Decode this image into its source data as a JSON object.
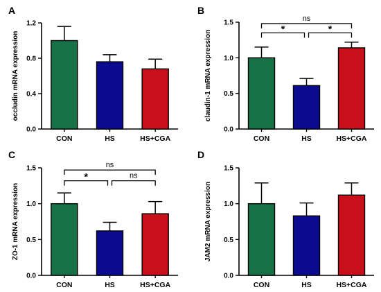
{
  "colors": {
    "CON": "#167147",
    "HS": "#0b0b8f",
    "HS+CGA": "#c8101a"
  },
  "chart_data": [
    {
      "panel": "A",
      "type": "bar",
      "ylabel": "occludin mRNA expression",
      "categories": [
        "CON",
        "HS",
        "HS+CGA"
      ],
      "values": [
        1.0,
        0.76,
        0.68
      ],
      "errors": [
        0.16,
        0.08,
        0.11
      ],
      "ylim": [
        0,
        1.2
      ],
      "yticks": [
        0,
        0.4,
        0.8,
        1.2
      ],
      "ytick_labels": [
        "0.0",
        "0.4",
        "0.8",
        "1.2"
      ],
      "significance": []
    },
    {
      "panel": "B",
      "type": "bar",
      "ylabel": "claudin-1 mRNA expression",
      "categories": [
        "CON",
        "HS",
        "HS+CGA"
      ],
      "values": [
        1.0,
        0.61,
        1.14
      ],
      "errors": [
        0.15,
        0.1,
        0.08
      ],
      "ylim": [
        0,
        1.5
      ],
      "yticks": [
        0,
        0.5,
        1.0,
        1.5
      ],
      "ytick_labels": [
        "0.0",
        "0.5",
        "1.0",
        "1.5"
      ],
      "significance": [
        {
          "from": 0,
          "to": 1,
          "label": "*",
          "level": 1.35
        },
        {
          "from": 1,
          "to": 2,
          "label": "*",
          "level": 1.35
        },
        {
          "from": 0,
          "to": 2,
          "label": "ns",
          "level": 1.48
        }
      ]
    },
    {
      "panel": "C",
      "type": "bar",
      "ylabel": "ZO-1 mRNA expression",
      "categories": [
        "CON",
        "HS",
        "HS+CGA"
      ],
      "values": [
        1.0,
        0.62,
        0.86
      ],
      "errors": [
        0.15,
        0.12,
        0.17
      ],
      "ylim": [
        0,
        1.5
      ],
      "yticks": [
        0,
        0.5,
        1.0,
        1.5
      ],
      "ytick_labels": [
        "0.0",
        "0.5",
        "1.0",
        "1.5"
      ],
      "significance": [
        {
          "from": 0,
          "to": 1,
          "label": "*",
          "level": 1.32
        },
        {
          "from": 1,
          "to": 2,
          "label": "ns",
          "level": 1.32
        },
        {
          "from": 0,
          "to": 2,
          "label": "ns",
          "level": 1.47
        }
      ]
    },
    {
      "panel": "D",
      "type": "bar",
      "ylabel": "JAM2 mRNA expression",
      "categories": [
        "CON",
        "HS",
        "HS+CGA"
      ],
      "values": [
        1.0,
        0.83,
        1.12
      ],
      "errors": [
        0.29,
        0.18,
        0.17
      ],
      "ylim": [
        0,
        1.5
      ],
      "yticks": [
        0,
        0.5,
        1.0,
        1.5
      ],
      "ytick_labels": [
        "0.0",
        "0.5",
        "1.0",
        "1.5"
      ],
      "significance": []
    }
  ]
}
